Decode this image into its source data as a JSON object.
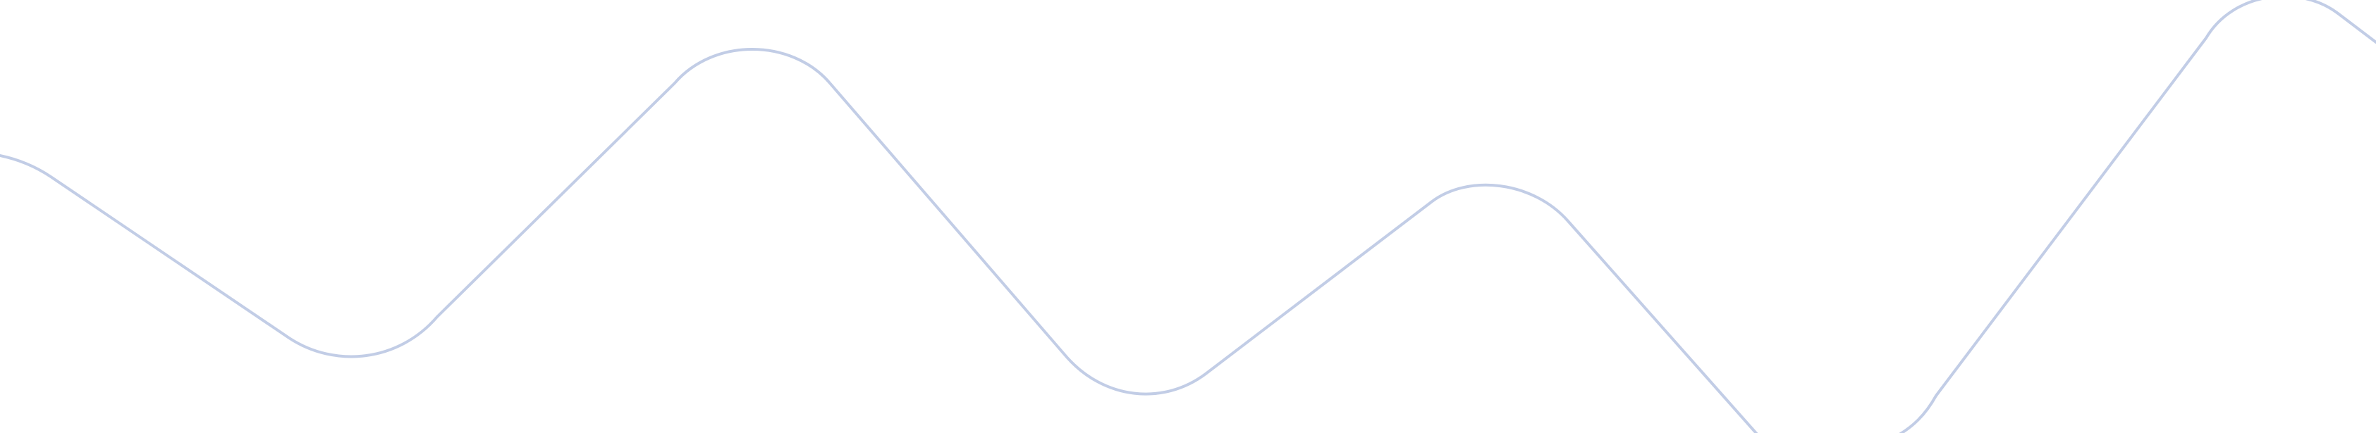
{
  "graphic": {
    "line_color": "#c2cde6",
    "background_color": "#ffffff"
  }
}
